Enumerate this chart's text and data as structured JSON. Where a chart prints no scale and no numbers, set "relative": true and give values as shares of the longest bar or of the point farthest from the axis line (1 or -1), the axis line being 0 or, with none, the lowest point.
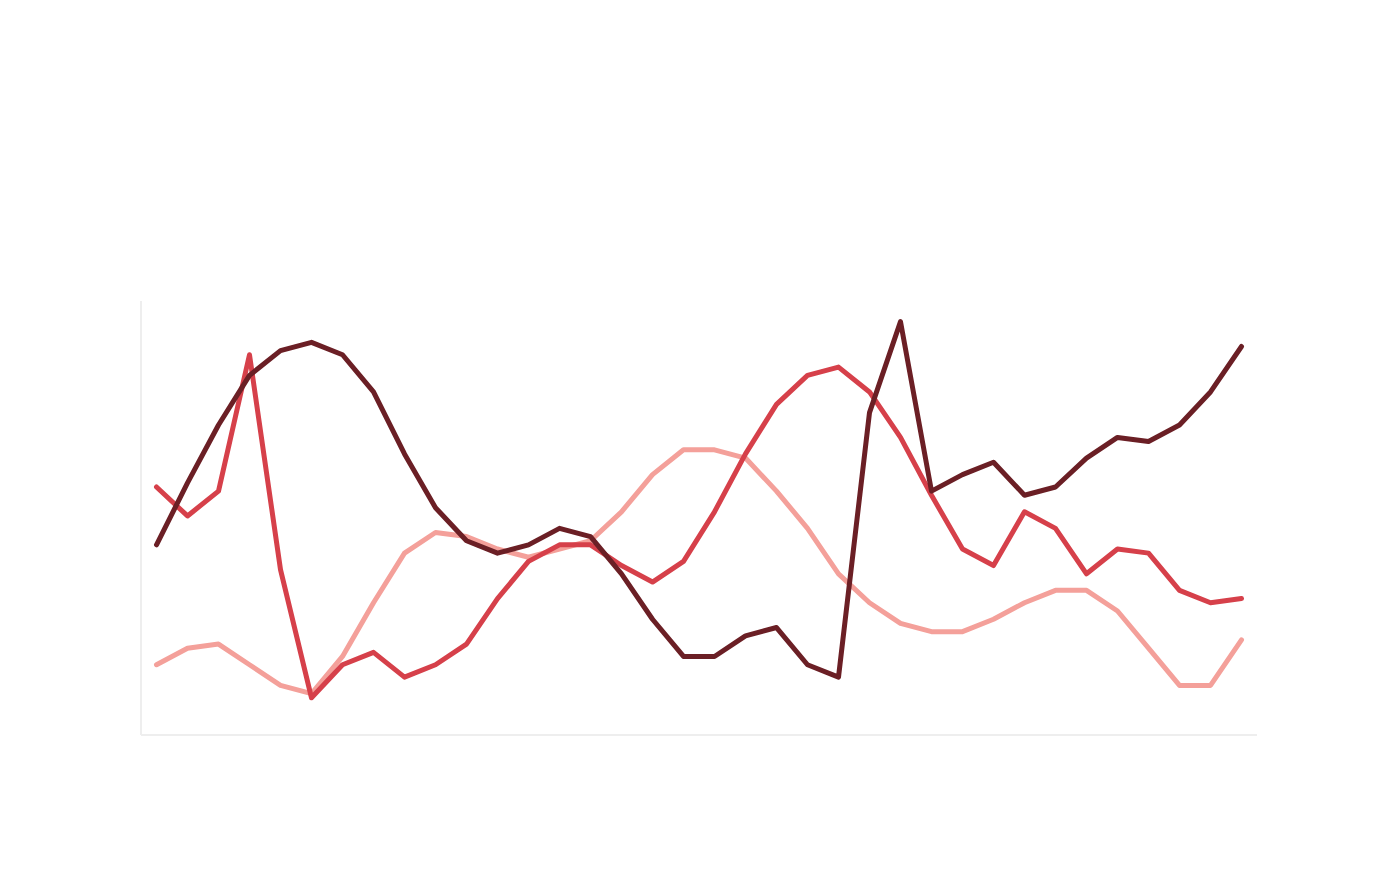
{
  "chart_data": {
    "type": "line",
    "relative": true,
    "categories": [
      null,
      null,
      null,
      null,
      null,
      null,
      null,
      null,
      null,
      null,
      null,
      null,
      null,
      null,
      null,
      null,
      null,
      null,
      null,
      null,
      null,
      null,
      null,
      null,
      null,
      null,
      null,
      null,
      null,
      null,
      null,
      null,
      null,
      null,
      null,
      null
    ],
    "series": [
      {
        "color": "#f4a09a",
        "values": [
          0.17,
          0.21,
          0.22,
          0.17,
          0.12,
          0.1,
          0.19,
          0.32,
          0.44,
          0.49,
          0.48,
          0.45,
          0.43,
          0.45,
          0.47,
          0.54,
          0.63,
          0.69,
          0.69,
          0.67,
          0.59,
          0.5,
          0.39,
          0.32,
          0.27,
          0.25,
          0.25,
          0.28,
          0.32,
          0.35,
          0.35,
          0.3,
          0.21,
          0.12,
          0.12,
          0.23
        ]
      },
      {
        "color": "#d6404a",
        "values": [
          0.6,
          0.53,
          0.59,
          0.92,
          0.4,
          0.09,
          0.17,
          0.2,
          0.14,
          0.17,
          0.22,
          0.33,
          0.42,
          0.46,
          0.46,
          0.41,
          0.37,
          0.42,
          0.54,
          0.68,
          0.8,
          0.87,
          0.89,
          0.83,
          0.72,
          0.58,
          0.45,
          0.41,
          0.54,
          0.5,
          0.39,
          0.45,
          0.44,
          0.35,
          0.32,
          0.33
        ]
      },
      {
        "color": "#6b1f25",
        "values": [
          0.46,
          0.61,
          0.75,
          0.87,
          0.93,
          0.95,
          0.92,
          0.83,
          0.68,
          0.55,
          0.47,
          0.44,
          0.46,
          0.5,
          0.48,
          0.39,
          0.28,
          0.19,
          0.19,
          0.24,
          0.26,
          0.17,
          0.14,
          0.78,
          1.0,
          0.59,
          0.63,
          0.66,
          0.58,
          0.6,
          0.67,
          0.72,
          0.71,
          0.75,
          0.83,
          0.94
        ]
      }
    ]
  }
}
